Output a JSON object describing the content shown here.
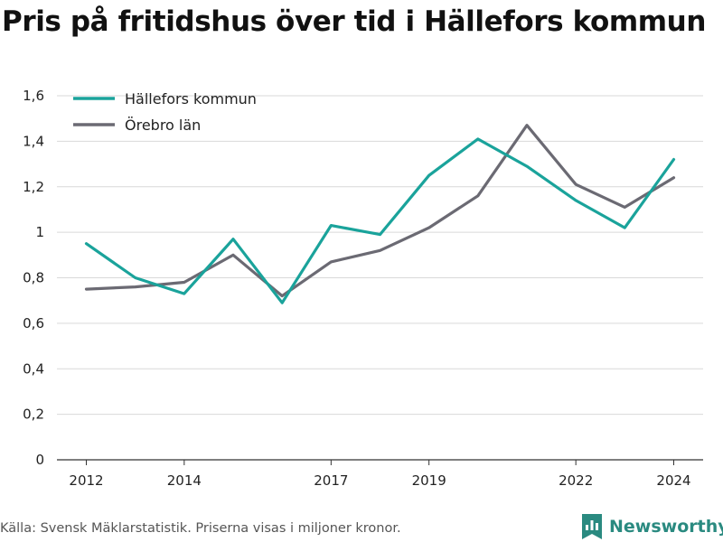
{
  "page": {
    "title": "Pris på fritidshus över tid i Hällefors kommun",
    "footer": "Källa: Svensk Mäklarstatistik. Priserna visas i miljoner kronor.",
    "brand": "Newsworthy"
  },
  "colors": {
    "accent": "#1aa39b",
    "secondary": "#6b6a73",
    "grid": "#d9d9d9",
    "brand": "#2a8a80"
  },
  "icons": {
    "brand_logo": "bar-chart-bookmark-icon"
  },
  "chart_data": {
    "type": "line",
    "title": "Pris på fritidshus över tid i Hällefors kommun",
    "xlabel": "",
    "ylabel": "",
    "xlim": [
      2011.4,
      2024.6
    ],
    "ylim": [
      0,
      1.6
    ],
    "xticks": [
      2012,
      2014,
      2017,
      2019,
      2022,
      2024
    ],
    "yticks": [
      0,
      0.2,
      0.4,
      0.6,
      0.8,
      1,
      1.2,
      1.4,
      1.6
    ],
    "ytick_labels": [
      "0",
      "0,2",
      "0,4",
      "0,6",
      "0,8",
      "1",
      "1,2",
      "1,4",
      "1,6"
    ],
    "grid": "horizontal",
    "legend_position": "top-left",
    "x": [
      2012,
      2013,
      2014,
      2015,
      2016,
      2017,
      2018,
      2019,
      2020,
      2021,
      2022,
      2023,
      2024
    ],
    "series": [
      {
        "name": "Hällefors kommun",
        "color": "#1aa39b",
        "values": [
          0.95,
          0.8,
          0.73,
          0.97,
          0.69,
          1.03,
          0.99,
          1.25,
          1.41,
          1.29,
          1.14,
          1.02,
          1.32
        ]
      },
      {
        "name": "Örebro län",
        "color": "#6b6a73",
        "values": [
          0.75,
          0.76,
          0.78,
          0.9,
          0.72,
          0.87,
          0.92,
          1.02,
          1.16,
          1.47,
          1.21,
          1.11,
          1.24
        ]
      }
    ]
  }
}
